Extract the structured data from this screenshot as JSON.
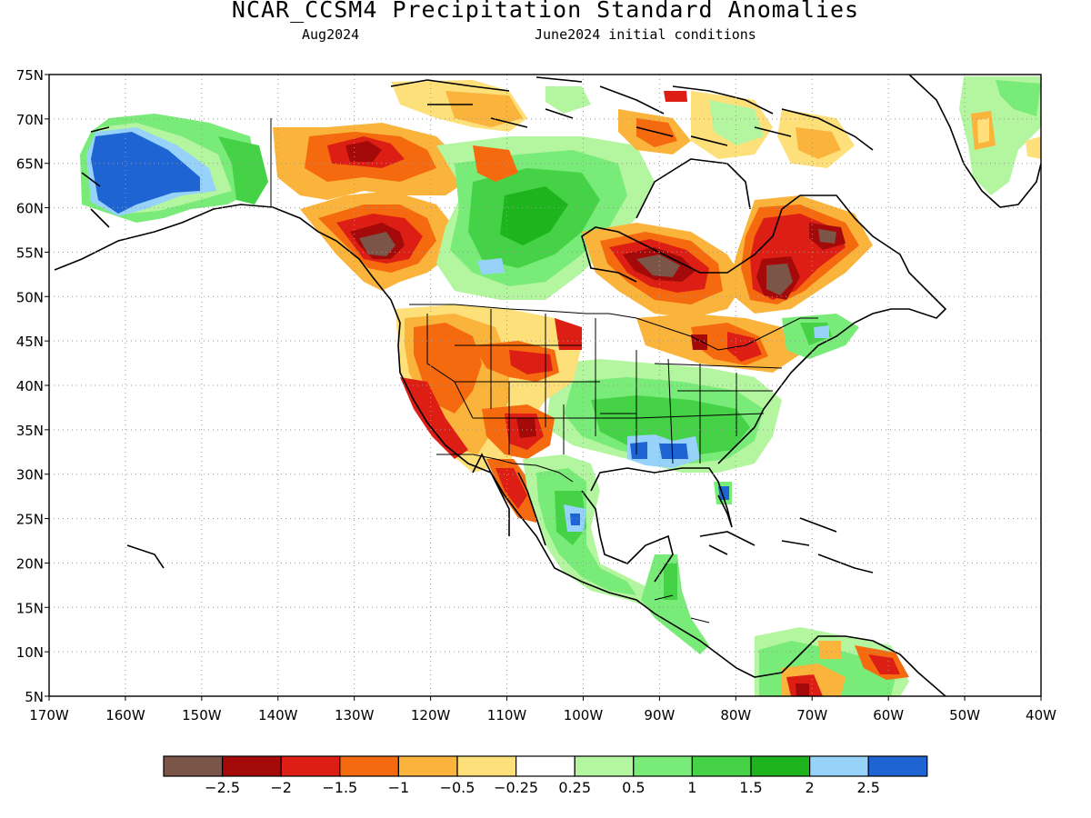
{
  "title": "NCAR_CCSM4 Precipitation Standard Anomalies",
  "subtitle_left": "Aug2024",
  "subtitle_right": "June2024 initial conditions",
  "map": {
    "lon_range": [
      -170,
      -40
    ],
    "lat_range": [
      5,
      75
    ],
    "lon_ticks": [
      -170,
      -160,
      -150,
      -140,
      -130,
      -120,
      -110,
      -100,
      -90,
      -80,
      -70,
      -60,
      -50,
      -40
    ],
    "lon_labels": [
      "170W",
      "160W",
      "150W",
      "140W",
      "130W",
      "120W",
      "110W",
      "100W",
      "90W",
      "80W",
      "70W",
      "60W",
      "50W",
      "40W"
    ],
    "lat_ticks": [
      5,
      10,
      15,
      20,
      25,
      30,
      35,
      40,
      45,
      50,
      55,
      60,
      65,
      70,
      75
    ],
    "lat_labels": [
      "5N",
      "10N",
      "15N",
      "20N",
      "25N",
      "30N",
      "35N",
      "40N",
      "45N",
      "50N",
      "55N",
      "60N",
      "65N",
      "70N",
      "75N"
    ],
    "gridlines": "dotted"
  },
  "colorbar": {
    "colors": [
      "#7a5548",
      "#a50a0a",
      "#dc1e14",
      "#f5690f",
      "#fab43c",
      "#fde07a",
      "#ffffff",
      "#b4f5a0",
      "#78eb78",
      "#46d246",
      "#1eb41e",
      "#96d2fa",
      "#1e64d2"
    ],
    "labels": [
      "-2.5",
      "-2",
      "-1.5",
      "-1",
      "-0.5",
      "-0.25",
      "0.25",
      "0.5",
      "1",
      "1.5",
      "2",
      "2.5"
    ]
  }
}
